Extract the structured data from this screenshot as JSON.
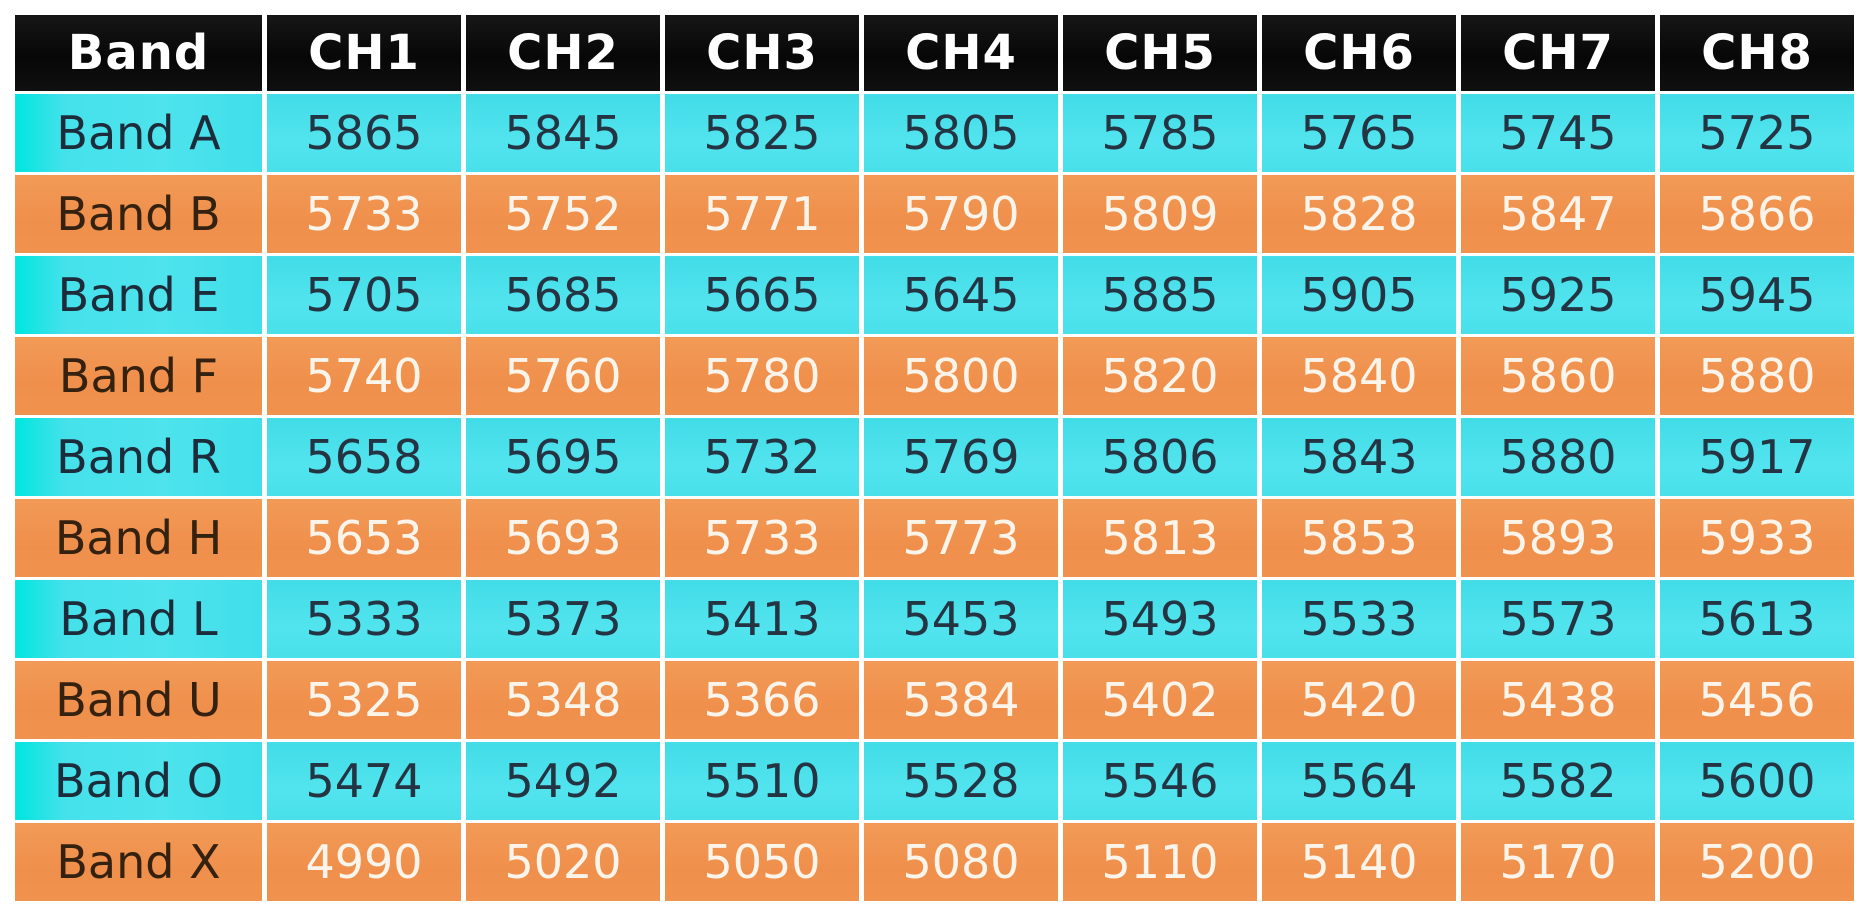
{
  "colors": {
    "background": "#ffffff",
    "separator": "#ffffff",
    "header_bg": "#0a0a0a",
    "header_text": "#ffffff",
    "cyan_row": "#4ae2ec",
    "cyan_row_edge": "#00e6df",
    "cyan_label_text": "#1d2c3a",
    "cyan_value_text": "#243442",
    "orange_row": "#f0914d",
    "orange_label_text": "#34210f",
    "orange_value_text": "#fbf4ea"
  },
  "chart_data": {
    "type": "table",
    "columns": [
      "Band",
      "CH1",
      "CH2",
      "CH3",
      "CH4",
      "CH5",
      "CH6",
      "CH7",
      "CH8"
    ],
    "rows": [
      {
        "band": "Band A",
        "style": "cyan",
        "values": [
          5865,
          5845,
          5825,
          5805,
          5785,
          5765,
          5745,
          5725
        ]
      },
      {
        "band": "Band B",
        "style": "orange",
        "values": [
          5733,
          5752,
          5771,
          5790,
          5809,
          5828,
          5847,
          5866
        ]
      },
      {
        "band": "Band E",
        "style": "cyan",
        "values": [
          5705,
          5685,
          5665,
          5645,
          5885,
          5905,
          5925,
          5945
        ]
      },
      {
        "band": "Band F",
        "style": "orange",
        "values": [
          5740,
          5760,
          5780,
          5800,
          5820,
          5840,
          5860,
          5880
        ]
      },
      {
        "band": "Band R",
        "style": "cyan",
        "values": [
          5658,
          5695,
          5732,
          5769,
          5806,
          5843,
          5880,
          5917
        ]
      },
      {
        "band": "Band H",
        "style": "orange",
        "values": [
          5653,
          5693,
          5733,
          5773,
          5813,
          5853,
          5893,
          5933
        ]
      },
      {
        "band": "Band L",
        "style": "cyan",
        "values": [
          5333,
          5373,
          5413,
          5453,
          5493,
          5533,
          5573,
          5613
        ]
      },
      {
        "band": "Band U",
        "style": "orange",
        "values": [
          5325,
          5348,
          5366,
          5384,
          5402,
          5420,
          5438,
          5456
        ]
      },
      {
        "band": "Band O",
        "style": "cyan",
        "values": [
          5474,
          5492,
          5510,
          5528,
          5546,
          5564,
          5582,
          5600
        ]
      },
      {
        "band": "Band X",
        "style": "orange",
        "values": [
          4990,
          5020,
          5050,
          5080,
          5110,
          5140,
          5170,
          5200
        ]
      }
    ]
  }
}
